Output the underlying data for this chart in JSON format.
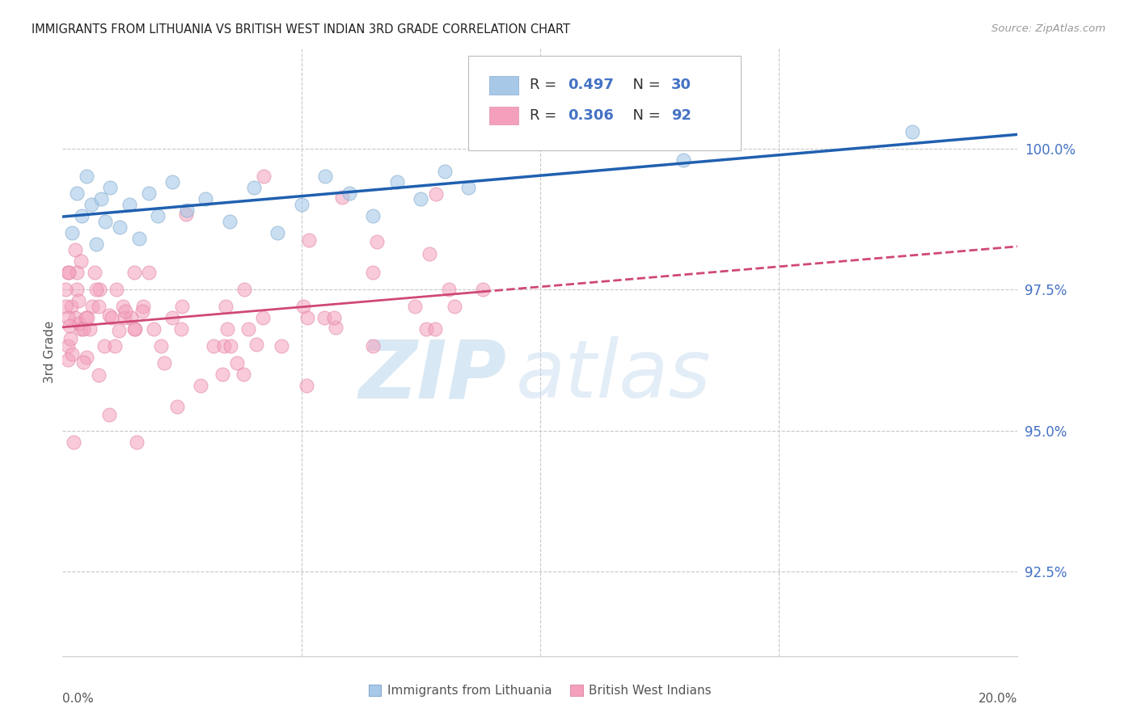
{
  "title": "IMMIGRANTS FROM LITHUANIA VS BRITISH WEST INDIAN 3RD GRADE CORRELATION CHART",
  "source_text": "Source: ZipAtlas.com",
  "ylabel": "3rd Grade",
  "xmin": 0.0,
  "xmax": 20.0,
  "ymin": 91.0,
  "ymax": 101.8,
  "yticks": [
    92.5,
    95.0,
    97.5,
    100.0
  ],
  "ytick_labels": [
    "92.5%",
    "95.0%",
    "97.5%",
    "100.0%"
  ],
  "blue_R": "0.497",
  "blue_N": "30",
  "pink_R": "0.306",
  "pink_N": "92",
  "blue_color": "#a8c8e8",
  "pink_color": "#f4a0bc",
  "blue_line_color": "#2060b0",
  "pink_line_color": "#d04878",
  "legend_label_blue": "Immigrants from Lithuania",
  "legend_label_pink": "British West Indians",
  "background_color": "#ffffff",
  "grid_color": "#c8c8c8",
  "accent_color": "#4472c4",
  "watermark_ZIP": "ZIP",
  "watermark_atlas": "atlas"
}
